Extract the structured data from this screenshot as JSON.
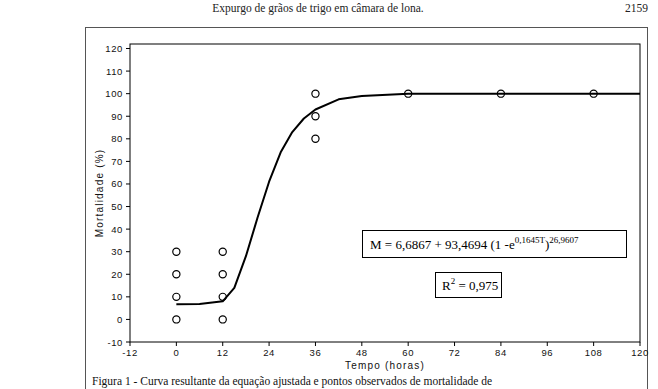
{
  "page": {
    "header": "Expurgo de grãos de trigo em câmara de lona.",
    "page_number": "2159",
    "caption": "Figura 1 - Curva resultante da equação ajustada e pontos observados de mortalidade de"
  },
  "chart_data": {
    "type": "scatter",
    "x_label": "Tempo (horas)",
    "y_label": "Mortalidade (%)",
    "xlim": [
      -12,
      120
    ],
    "xticks": [
      -12,
      0,
      12,
      24,
      36,
      48,
      60,
      72,
      84,
      96,
      108,
      120
    ],
    "ylim": [
      -10,
      122
    ],
    "yticks": [
      -10,
      0,
      10,
      20,
      30,
      40,
      50,
      60,
      70,
      80,
      90,
      100,
      110,
      120
    ],
    "grid": false,
    "annotations": {
      "equation": [
        "M = 6,6867 + 93,4694 (1 -e",
        "0,1645T",
        ")",
        "26,9607"
      ],
      "r_squared": [
        "R",
        "2",
        " = 0,975"
      ]
    },
    "series": [
      {
        "type": "scatter",
        "marker": "circle",
        "color": "#000000",
        "x": [
          0,
          0,
          0,
          0,
          12,
          12,
          12,
          12,
          36,
          36,
          36,
          60,
          84,
          108
        ],
        "values": [
          0,
          10,
          20,
          30,
          0,
          10,
          20,
          30,
          80,
          90,
          100,
          100,
          100,
          100
        ]
      },
      {
        "type": "line",
        "line_style": "solid",
        "color": "#000000",
        "x": [
          0,
          6,
          12,
          15,
          18,
          21,
          24,
          27,
          30,
          33,
          36,
          42,
          48,
          60,
          72,
          84,
          96,
          108,
          120
        ],
        "values": [
          6.7,
          6.8,
          8,
          14,
          28,
          45,
          61,
          74,
          83,
          89,
          93,
          97.5,
          99,
          100,
          100,
          100,
          100,
          100,
          100
        ]
      }
    ]
  }
}
